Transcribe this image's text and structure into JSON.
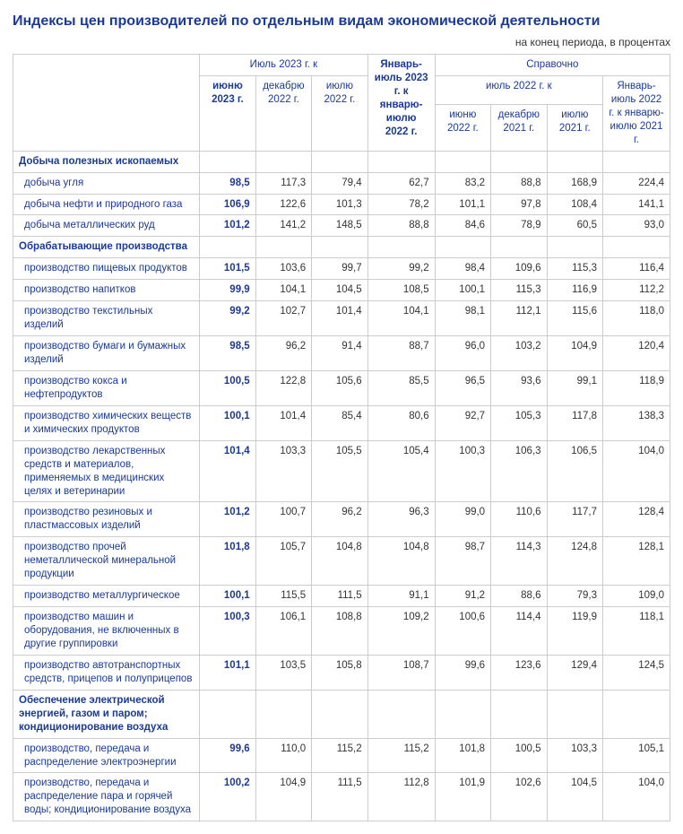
{
  "title": "Индексы цен производителей по отдельным видам экономической деятельности",
  "subtitle": "на конец периода, в процентах",
  "header": {
    "top1": "Июль 2023 г. к",
    "top2": "Январь-июль 2023 г. к январю-июлю 2022 г.",
    "top3": "Справочно",
    "mid1": "июль 2022 г. к",
    "mid2": "Январь-июль 2022 г. к январю-июлю 2021 г.",
    "c1": "июню 2023 г.",
    "c2": "декабрю 2022 г.",
    "c3": "июлю 2022 г.",
    "c5": "июню 2022 г.",
    "c6": "декабрю 2021 г.",
    "c7": "июлю 2021 г."
  },
  "sections": [
    {
      "label": "Добыча полезных ископаемых",
      "rows": [
        {
          "label": "добыча угля",
          "v": [
            "98,5",
            "117,3",
            "79,4",
            "62,7",
            "83,2",
            "88,8",
            "168,9",
            "224,4"
          ]
        },
        {
          "label": "добыча нефти и природного газа",
          "v": [
            "106,9",
            "122,6",
            "101,3",
            "78,2",
            "101,1",
            "97,8",
            "108,4",
            "141,1"
          ]
        },
        {
          "label": "добыча металлических руд",
          "v": [
            "101,2",
            "141,2",
            "148,5",
            "88,8",
            "84,6",
            "78,9",
            "60,5",
            "93,0"
          ]
        }
      ]
    },
    {
      "label": "Обрабатывающие производства",
      "rows": [
        {
          "label": "производство пищевых продуктов",
          "v": [
            "101,5",
            "103,6",
            "99,7",
            "99,2",
            "98,4",
            "109,6",
            "115,3",
            "116,4"
          ]
        },
        {
          "label": "производство напитков",
          "v": [
            "99,9",
            "104,1",
            "104,5",
            "108,5",
            "100,1",
            "115,3",
            "116,9",
            "112,2"
          ]
        },
        {
          "label": "производство текстильных изделий",
          "v": [
            "99,2",
            "102,7",
            "101,4",
            "104,1",
            "98,1",
            "112,1",
            "115,6",
            "118,0"
          ]
        },
        {
          "label": "производство бумаги и бумажных изделий",
          "v": [
            "98,5",
            "96,2",
            "91,4",
            "88,7",
            "96,0",
            "103,2",
            "104,9",
            "120,4"
          ]
        },
        {
          "label": "производство кокса и нефтепродуктов",
          "v": [
            "100,5",
            "122,8",
            "105,6",
            "85,5",
            "96,5",
            "93,6",
            "99,1",
            "118,9"
          ]
        },
        {
          "label": "производство химических веществ и химических продуктов",
          "v": [
            "100,1",
            "101,4",
            "85,4",
            "80,6",
            "92,7",
            "105,3",
            "117,8",
            "138,3"
          ]
        },
        {
          "label": "производство лекарственных средств и материалов, применяемых в медицинских целях и ветеринарии",
          "v": [
            "101,4",
            "103,3",
            "105,5",
            "105,4",
            "100,3",
            "106,3",
            "106,5",
            "104,0"
          ]
        },
        {
          "label": "производство резиновых и пластмассовых изделий",
          "v": [
            "101,2",
            "100,7",
            "96,2",
            "96,3",
            "99,0",
            "110,6",
            "117,7",
            "128,4"
          ]
        },
        {
          "label": "производство прочей неметаллической минеральной продукции",
          "v": [
            "101,8",
            "105,7",
            "104,8",
            "104,8",
            "98,7",
            "114,3",
            "124,8",
            "128,1"
          ]
        },
        {
          "label": "производство металлургическое",
          "v": [
            "100,1",
            "115,5",
            "111,5",
            "91,1",
            "91,2",
            "88,6",
            "79,3",
            "109,0"
          ]
        },
        {
          "label": "производство машин и оборудования, не включенных в другие группировки",
          "v": [
            "100,3",
            "106,1",
            "108,8",
            "109,2",
            "100,6",
            "114,4",
            "119,9",
            "118,1"
          ]
        },
        {
          "label": "производство автотранспортных средств, прицепов и полуприцепов",
          "v": [
            "101,1",
            "103,5",
            "105,8",
            "108,7",
            "99,6",
            "123,6",
            "129,4",
            "124,5"
          ]
        }
      ]
    },
    {
      "label": "Обеспечение электрической энергией, газом и паром; кондиционирование воздуха",
      "rows": [
        {
          "label": "производство, передача и распределение электроэнергии",
          "v": [
            "99,6",
            "110,0",
            "115,2",
            "115,2",
            "101,8",
            "100,5",
            "103,3",
            "105,1"
          ]
        },
        {
          "label": "производство, передача и распределение пара и горячей воды; кондиционирование воздуха",
          "v": [
            "100,2",
            "104,9",
            "111,5",
            "112,8",
            "101,9",
            "102,6",
            "104,5",
            "104,0"
          ]
        }
      ]
    }
  ]
}
